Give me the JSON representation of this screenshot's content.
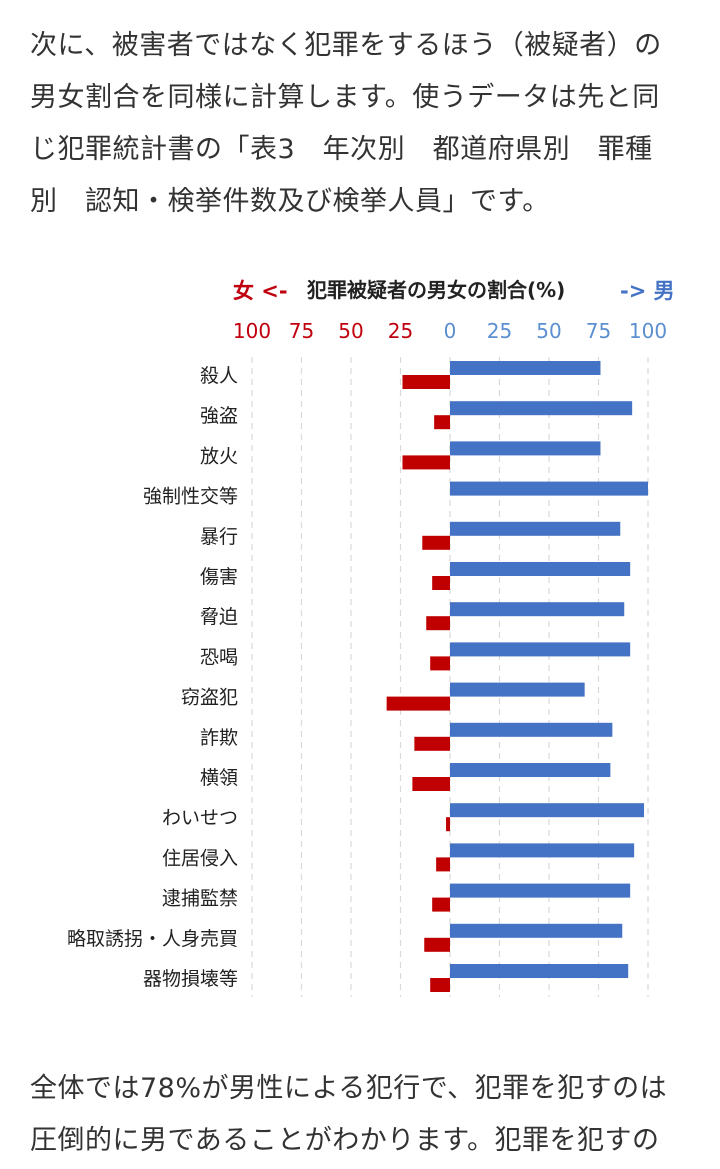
{
  "intro": {
    "lines": [
      "次に、被害者ではなく犯罪をするほう（被疑者）の",
      "男女割合を同様に計算します。使うデータは先と同",
      "じ犯罪統計書の「表3　年次別　都道府県別　罪種",
      "別　認知・検挙件数及び検挙人員」です。"
    ]
  },
  "outro": {
    "lines": [
      "全体では78%が男性による犯行で、犯罪を犯すのは",
      "圧倒的に男であることがわかります。犯罪を犯すの"
    ]
  },
  "chart_data": {
    "type": "bar",
    "orientation": "horizontal-diverging",
    "title": "犯罪被疑者の男女の割合(%)",
    "legend_female": "女 <-",
    "legend_male": "-> 男",
    "tick_labels_female": [
      "100",
      "75",
      "50",
      "25"
    ],
    "tick_labels_male": [
      "0",
      "25",
      "50",
      "75",
      "100"
    ],
    "xlim": [
      -100,
      100
    ],
    "grid": "vertical dashed",
    "colors": {
      "female": "#c00000",
      "male": "#4472c4"
    },
    "categories": [
      "殺人",
      "強盗",
      "放火",
      "強制性交等",
      "暴行",
      "傷害",
      "脅迫",
      "恐喝",
      "窃盗犯",
      "詐欺",
      "横領",
      "わいせつ",
      "住居侵入",
      "逮捕監禁",
      "略取誘拐・人身売買",
      "器物損壊等"
    ],
    "series": [
      {
        "name": "女",
        "values": [
          24,
          8,
          24,
          0,
          14,
          9,
          12,
          10,
          32,
          18,
          19,
          2,
          7,
          9,
          13,
          10
        ]
      },
      {
        "name": "男",
        "values": [
          76,
          92,
          76,
          100,
          86,
          91,
          88,
          91,
          68,
          82,
          81,
          98,
          93,
          91,
          87,
          90
        ]
      }
    ]
  }
}
